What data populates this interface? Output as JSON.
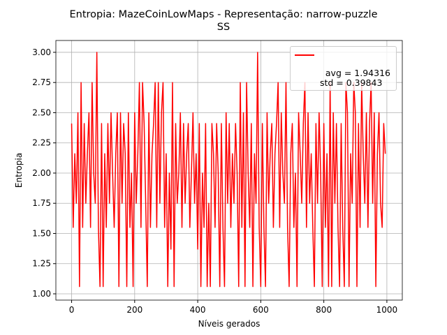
{
  "chart_data": {
    "type": "line",
    "title": "Entropia: MazeCoinLowMaps - Representação: narrow-puzzle\nSS",
    "x_label": "Níveis gerados",
    "y_label": "Entropia",
    "x": [
      0,
      5,
      10,
      15,
      20,
      25,
      30,
      35,
      40,
      45,
      50,
      55,
      60,
      65,
      70,
      75,
      80,
      85,
      90,
      95,
      100,
      105,
      110,
      115,
      120,
      125,
      130,
      135,
      140,
      145,
      150,
      155,
      160,
      165,
      170,
      175,
      180,
      185,
      190,
      195,
      200,
      205,
      210,
      215,
      220,
      225,
      230,
      235,
      240,
      245,
      250,
      255,
      260,
      265,
      270,
      275,
      280,
      285,
      290,
      295,
      300,
      305,
      310,
      315,
      320,
      325,
      330,
      335,
      340,
      345,
      350,
      355,
      360,
      365,
      370,
      375,
      380,
      385,
      390,
      395,
      400,
      405,
      410,
      415,
      420,
      425,
      430,
      435,
      440,
      445,
      450,
      455,
      460,
      465,
      470,
      475,
      480,
      485,
      490,
      495,
      500,
      505,
      510,
      515,
      520,
      525,
      530,
      535,
      540,
      545,
      550,
      555,
      560,
      565,
      570,
      575,
      580,
      585,
      590,
      595,
      600,
      605,
      610,
      615,
      620,
      625,
      630,
      635,
      640,
      645,
      650,
      655,
      660,
      665,
      670,
      675,
      680,
      685,
      690,
      695,
      700,
      705,
      710,
      715,
      720,
      725,
      730,
      735,
      740,
      745,
      750,
      755,
      760,
      765,
      770,
      775,
      780,
      785,
      790,
      795,
      800,
      805,
      810,
      815,
      820,
      825,
      830,
      835,
      840,
      845,
      850,
      855,
      860,
      865,
      870,
      875,
      880,
      885,
      890,
      895,
      900,
      905,
      910,
      915,
      920,
      925,
      930,
      935,
      940,
      945,
      950,
      955,
      960,
      965,
      970,
      975,
      980,
      985,
      990,
      995
    ],
    "series": [
      {
        "name": "avg = 1.94316\nstd = 0.39843",
        "color": "#ff0000",
        "values": [
          2.41,
          1.55,
          2.16,
          1.75,
          2.5,
          1.06,
          2.75,
          1.55,
          2.41,
          1.75,
          2.16,
          2.5,
          1.55,
          2.75,
          2.0,
          1.75,
          3.0,
          1.55,
          1.06,
          2.41,
          1.06,
          2.16,
          1.55,
          2.41,
          1.75,
          2.5,
          2.0,
          1.55,
          2.16,
          2.5,
          1.06,
          2.5,
          1.75,
          2.41,
          2.16,
          1.06,
          2.5,
          1.55,
          2.0,
          1.06,
          2.5,
          1.75,
          2.16,
          2.75,
          1.55,
          2.75,
          2.41,
          1.75,
          1.06,
          2.5,
          1.55,
          2.16,
          2.41,
          2.75,
          1.55,
          2.75,
          1.75,
          2.5,
          2.75,
          1.55,
          2.16,
          1.06,
          2.0,
          1.37,
          2.75,
          1.06,
          2.41,
          1.75,
          2.0,
          2.5,
          1.55,
          2.41,
          1.75,
          2.16,
          2.41,
          1.55,
          2.0,
          2.5,
          1.75,
          2.16,
          1.37,
          2.41,
          1.06,
          2.0,
          1.55,
          2.41,
          1.06,
          1.75,
          1.06,
          2.41,
          2.16,
          1.55,
          2.41,
          2.0,
          1.06,
          2.41,
          1.55,
          1.06,
          2.5,
          1.75,
          2.41,
          1.55,
          2.16,
          1.75,
          2.41,
          2.0,
          1.06,
          2.75,
          1.55,
          2.5,
          1.06,
          2.75,
          2.0,
          1.55,
          2.41,
          1.06,
          2.16,
          1.75,
          3.0,
          1.55,
          1.06,
          2.41,
          1.55,
          1.06,
          2.5,
          1.75,
          2.16,
          2.41,
          1.55,
          2.16,
          2.41,
          2.75,
          1.55,
          2.5,
          2.0,
          1.75,
          2.75,
          1.55,
          1.06,
          2.16,
          2.41,
          1.55,
          2.0,
          1.06,
          2.5,
          2.16,
          1.75,
          2.41,
          2.75,
          1.55,
          2.5,
          1.75,
          2.16,
          1.55,
          1.06,
          2.41,
          1.75,
          2.5,
          2.0,
          1.06,
          2.41,
          1.55,
          2.16,
          1.06,
          2.75,
          1.06,
          2.5,
          1.75,
          2.41,
          1.55,
          1.06,
          2.41,
          1.55,
          1.06,
          2.75,
          2.5,
          1.06,
          2.16,
          1.75,
          2.75,
          2.5,
          1.06,
          2.41,
          1.55,
          2.75,
          2.16,
          1.75,
          2.5,
          1.55,
          2.41,
          2.75,
          1.75,
          2.5,
          1.06,
          2.16,
          2.5,
          1.75,
          1.55,
          2.41,
          2.16
        ]
      }
    ],
    "xlim": [
      -49.95,
      1048.95
    ],
    "xticks": [
      0,
      200,
      400,
      600,
      800,
      1000
    ],
    "ylim": [
      0.948,
      3.098
    ],
    "yticks": [
      {
        "value": 1.0,
        "label": "1.00"
      },
      {
        "value": 1.25,
        "label": "1.25"
      },
      {
        "value": 1.5,
        "label": "1.50"
      },
      {
        "value": 1.75,
        "label": "1.75"
      },
      {
        "value": 2.0,
        "label": "2.00"
      },
      {
        "value": 2.25,
        "label": "2.25"
      },
      {
        "value": 2.5,
        "label": "2.50"
      },
      {
        "value": 2.75,
        "label": "2.75"
      },
      {
        "value": 3.0,
        "label": "3.00"
      }
    ],
    "grid": true,
    "legend": "upper right"
  }
}
